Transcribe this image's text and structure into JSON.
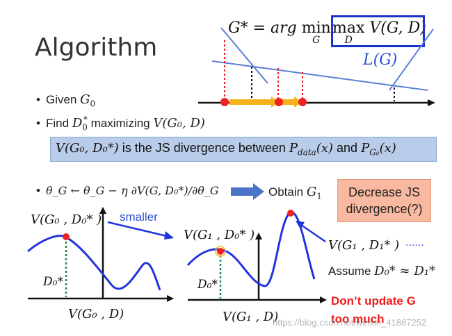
{
  "slide": {
    "title": "Algorithm",
    "top_formula": "G* = arg min_G max_D V(G, D)",
    "top_formula_parts": {
      "lhs": "G* = arg ",
      "min": "min",
      "min_sub": "G",
      "max": "max",
      "max_sub": "D",
      "rhs": " V(G, D)"
    },
    "lg_label": "L(G)",
    "bullets": [
      {
        "text": "Given ",
        "math": "G",
        "sub": "0"
      },
      {
        "text": "Find ",
        "math": "D",
        "sup": "*",
        "sub": "0",
        "tail": " maximizing ",
        "tail_math": "V(G0, D)"
      }
    ],
    "bullet1_given": "Given",
    "bullet2_find": "Find",
    "bullet2_maximizing": "maximizing",
    "bullet2_vg": "V(G₀, D)",
    "bluebox_lhs": "V(G₀, D₀*)",
    "bluebox_text": " is the JS divergence between ",
    "bluebox_p1": "P",
    "bluebox_p1_sub": "data",
    "bluebox_p1_arg": "(x)",
    "bluebox_and": " and ",
    "bluebox_p2": "P",
    "bluebox_p2_sub": "G₀",
    "bluebox_p2_arg": "(x)",
    "update_rule": "θ_G ← θ_G − η ∂V(G, D₀*)/∂θ_G",
    "update_lhs": "θ",
    "update_sub": "G",
    "update_rest": " ← θ",
    "update_rest2": " − η ∂V(G, D",
    "update_rest3": ")/∂θ",
    "obtain": "Obtain ",
    "obtain_g": "G",
    "obtain_sub": "1",
    "orange_box": [
      "Decrease JS",
      "divergence(?)"
    ],
    "left_curve_label": "V(G₀ , D₀* )",
    "smaller_label": "smaller",
    "left_d_label": "D₀*",
    "left_axis_label": "V(G₀ , D)",
    "right_curve_label": "V(G₁ , D₀* )",
    "right_d_label": "D₀*",
    "right_axis_label": "V(G₁ , D)",
    "right_d1_label": "V(G₁ , D₁* )",
    "ellipsis": "......",
    "assume": "Assume ",
    "assume_math": "D₀* ≈ D₁*",
    "dont_update": [
      "Don’t update G",
      "too much"
    ],
    "watermark": "https://blog.csdn.net/weixin_41867252"
  },
  "colors": {
    "accent_blue": "#1a33cc",
    "curve_blue": "#2233dd",
    "line_blue": "#5a7fd6",
    "red": "#ee1c1c",
    "dot_red": "#ee2222",
    "orange_arrow": "#f5b21a",
    "green_dotted": "#1a8a4a",
    "bluebox_bg": "#b9cdea",
    "orange_box_bg": "#f8b9a0"
  }
}
